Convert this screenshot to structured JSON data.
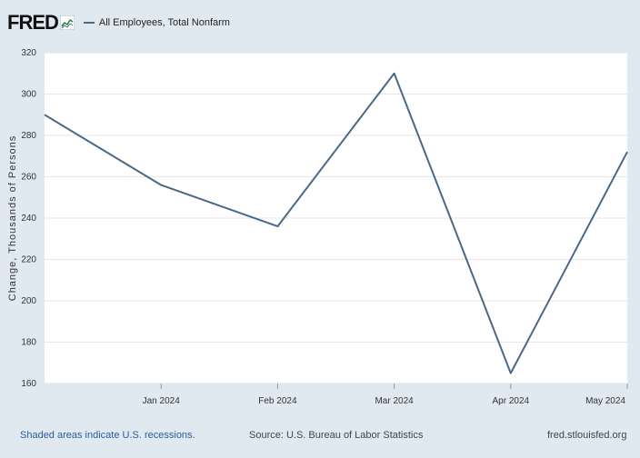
{
  "header": {
    "logo_text": "FRED",
    "logo_icon": "fred-chart-icon",
    "legend_label": "All Employees, Total Nonfarm"
  },
  "footer": {
    "left": "Shaded areas indicate U.S. recessions.",
    "middle": "Source: U.S. Bureau of Labor Statistics",
    "right": "fred.stlouisfed.org"
  },
  "colors": {
    "background": "#e1e9f0",
    "plot_background": "#ffffff",
    "series_line": "#4a6987",
    "grid": "#e6e6e6",
    "footer_link": "#2a5d9f"
  },
  "chart_data": {
    "type": "line",
    "ylabel": "Change, Thousands of Persons",
    "xlabel": "",
    "ylim": [
      160,
      320
    ],
    "yticks": [
      160,
      180,
      200,
      220,
      240,
      260,
      280,
      300,
      320
    ],
    "grid": true,
    "x_tick_labels": [
      "Jan 2024",
      "Feb 2024",
      "Mar 2024",
      "Apr 2024",
      "May 2024"
    ],
    "x": [
      "2023-12",
      "2024-01",
      "2024-02",
      "2024-03",
      "2024-04",
      "2024-05"
    ],
    "series": [
      {
        "name": "All Employees, Total Nonfarm",
        "values": [
          290,
          256,
          236,
          310,
          165,
          272
        ]
      }
    ]
  }
}
